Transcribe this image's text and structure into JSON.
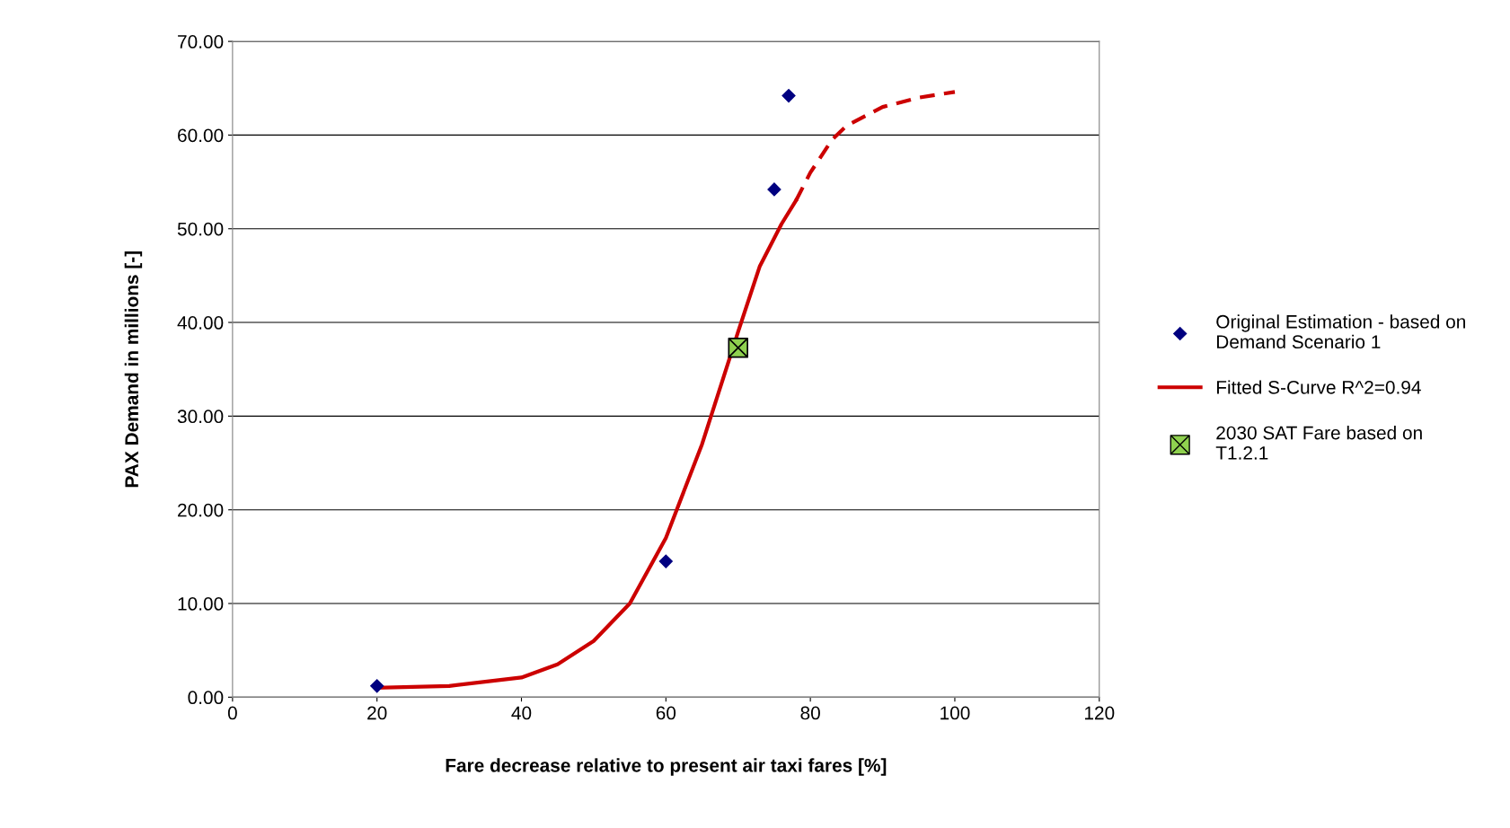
{
  "chart_data": {
    "type": "scatter",
    "xlabel": "Fare decrease relative to present air taxi fares [%]",
    "ylabel": "PAX Demand in millions [-]",
    "xlim": [
      0,
      120
    ],
    "xticks": [
      0,
      20,
      40,
      60,
      80,
      100,
      120
    ],
    "ylim": [
      0,
      70
    ],
    "yticks": [
      {
        "value": 0,
        "label": "0.00"
      },
      {
        "value": 10,
        "label": "10.00"
      },
      {
        "value": 20,
        "label": "20.00"
      },
      {
        "value": 30,
        "label": "30.00"
      },
      {
        "value": 40,
        "label": "40.00"
      },
      {
        "value": 50,
        "label": "50.00"
      },
      {
        "value": 60,
        "label": "60.00"
      },
      {
        "value": 70,
        "label": "70.00"
      }
    ],
    "grid": "y",
    "legend": "right",
    "series": [
      {
        "name": "Original Estimation - based on\nDemand Scenario 1",
        "marker": "diamond",
        "color": "#000080",
        "x": [
          20,
          60,
          75,
          77
        ],
        "values": [
          1.2,
          14.5,
          54.2,
          64.2
        ]
      },
      {
        "name": "Fitted S-Curve R^2=0.94",
        "type": "line",
        "line_style": "solid",
        "marker": "none",
        "color": "#cc0000",
        "x": [
          20,
          30,
          40,
          45,
          50,
          55,
          60,
          65,
          70,
          73,
          76,
          78
        ],
        "values": [
          1.0,
          1.2,
          2.1,
          3.5,
          6,
          10,
          17,
          27,
          39,
          46,
          50.5,
          53
        ]
      },
      {
        "type": "line",
        "line_style": "dashed",
        "marker": "none",
        "color": "#cc0000",
        "x": [
          78,
          80,
          83,
          85,
          90,
          95,
          100
        ],
        "values": [
          53,
          56,
          59.5,
          61,
          63,
          64,
          64.6
        ]
      },
      {
        "name": "2030 SAT Fare based on\nT1.2.1",
        "marker": "cross",
        "color": "#8fd14f",
        "x": [
          70
        ],
        "values": [
          37.3
        ]
      }
    ]
  }
}
